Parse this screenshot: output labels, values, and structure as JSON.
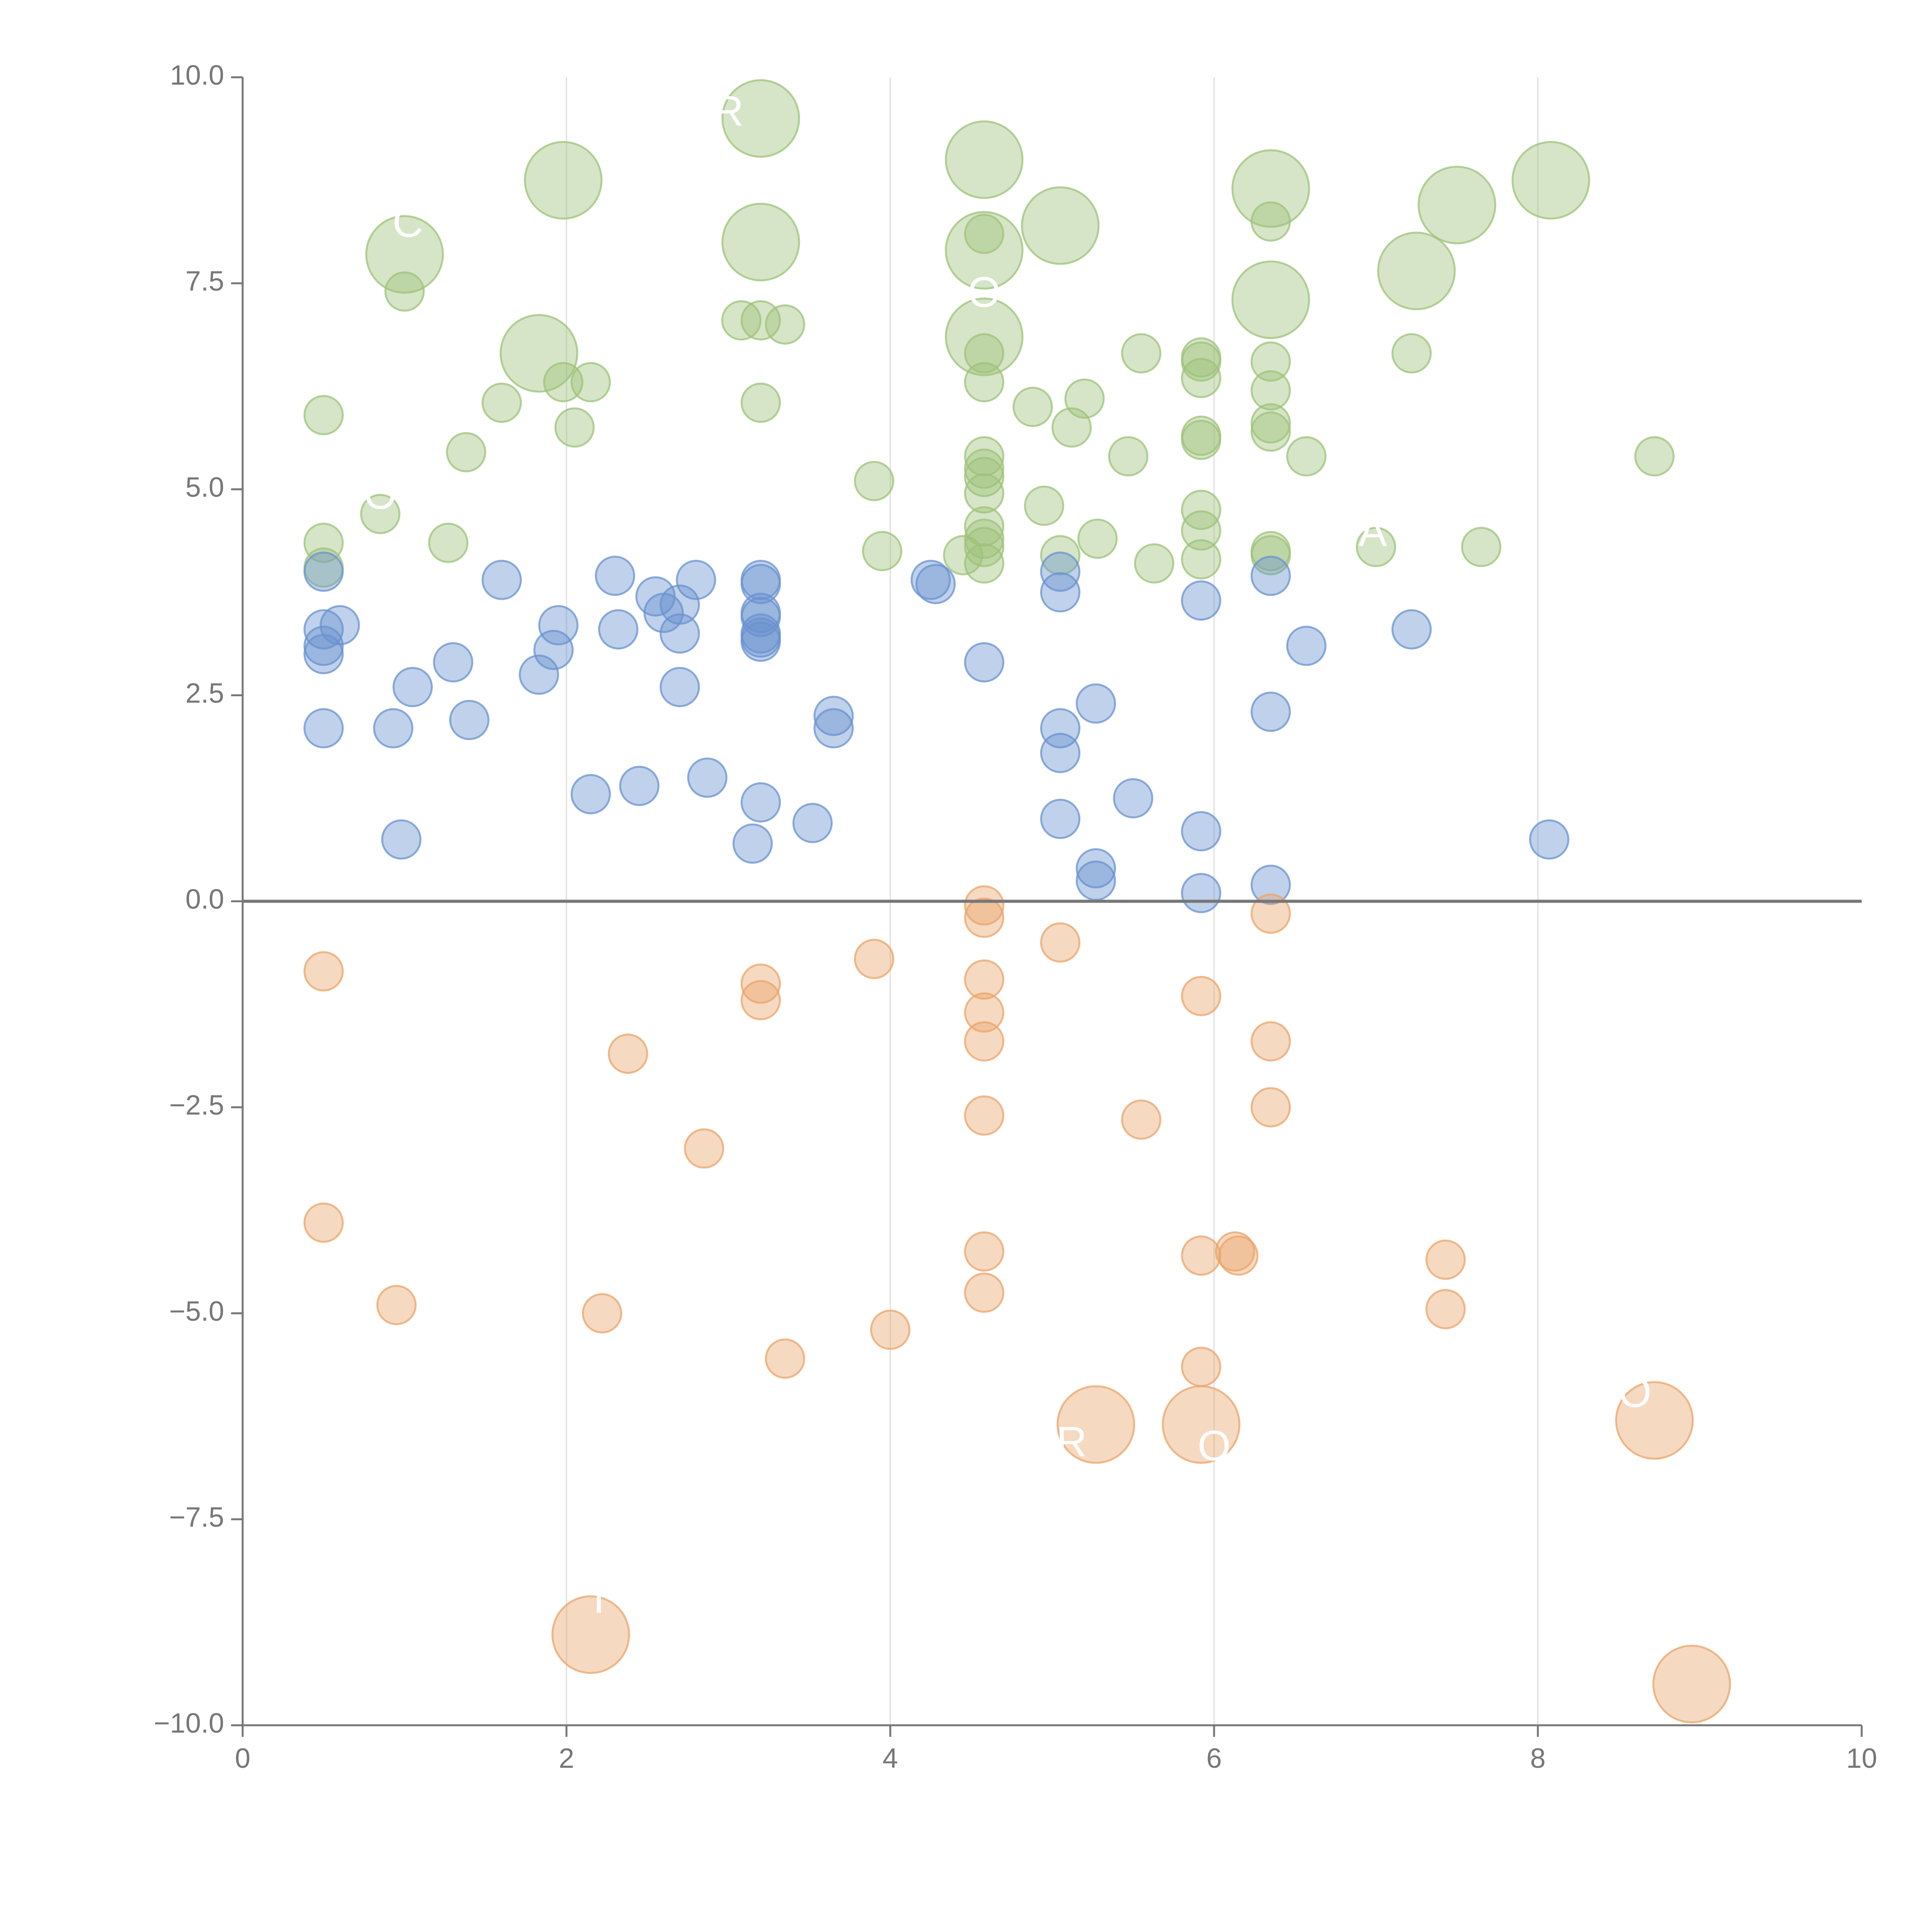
{
  "chart_data": {
    "type": "scatter",
    "title": "",
    "xlabel": "",
    "ylabel": "",
    "xlim": [
      0,
      10
    ],
    "ylim": [
      -10,
      10
    ],
    "x_ticks": [
      "0",
      "2",
      "4",
      "6",
      "8",
      "10"
    ],
    "x_tick_values": [
      0,
      2,
      4,
      6,
      8,
      10
    ],
    "y_ticks": [
      "10.0",
      "7.5",
      "5.0",
      "2.5",
      "0.0",
      "−2.5",
      "−5.0",
      "−7.5",
      "−10.0"
    ],
    "y_tick_values": [
      10,
      7.5,
      5,
      2.5,
      0,
      -2.5,
      -5,
      -7.5,
      -10
    ],
    "grid": "vertical",
    "reference_line_y": 0,
    "series": [
      {
        "color": "#9dc27a",
        "points": [
          [
            3.2,
            9.5,
            1.6
          ],
          [
            1.98,
            8.75,
            1.6
          ],
          [
            4.58,
            9.0,
            1.6
          ],
          [
            6.35,
            8.65,
            1.6
          ],
          [
            8.08,
            8.75,
            1.6
          ],
          [
            7.5,
            8.45,
            1.6
          ],
          [
            1.0,
            7.85,
            1.6
          ],
          [
            3.2,
            8.0,
            1.6
          ],
          [
            5.05,
            8.2,
            1.6
          ],
          [
            4.58,
            7.9,
            1.6
          ],
          [
            7.25,
            7.65,
            1.6
          ],
          [
            6.35,
            7.3,
            1.6
          ],
          [
            1.83,
            6.65,
            1.6
          ],
          [
            4.58,
            6.85,
            1.6
          ],
          [
            1.0,
            7.4,
            0.8
          ],
          [
            3.08,
            7.05,
            0.8
          ],
          [
            3.2,
            7.05,
            0.8
          ],
          [
            3.35,
            7.0,
            0.8
          ],
          [
            4.58,
            8.1,
            0.8
          ],
          [
            6.35,
            8.25,
            0.8
          ],
          [
            0.5,
            5.9,
            0.8
          ],
          [
            1.6,
            6.05,
            0.8
          ],
          [
            1.98,
            6.3,
            0.8
          ],
          [
            2.15,
            6.3,
            0.8
          ],
          [
            2.05,
            5.75,
            0.8
          ],
          [
            3.2,
            6.05,
            0.8
          ],
          [
            1.38,
            5.45,
            0.8
          ],
          [
            0.85,
            4.7,
            0.8
          ],
          [
            0.5,
            4.35,
            0.8
          ],
          [
            0.5,
            4.05,
            0.8
          ],
          [
            1.27,
            4.35,
            0.8
          ],
          [
            3.9,
            5.1,
            0.8
          ],
          [
            3.95,
            4.25,
            0.8
          ],
          [
            4.45,
            4.2,
            0.8
          ],
          [
            4.58,
            6.65,
            0.8
          ],
          [
            4.58,
            6.3,
            0.8
          ],
          [
            4.58,
            5.4,
            0.8
          ],
          [
            4.58,
            5.25,
            0.8
          ],
          [
            4.58,
            5.15,
            0.8
          ],
          [
            4.58,
            4.95,
            0.8
          ],
          [
            4.58,
            4.55,
            0.8
          ],
          [
            4.58,
            4.4,
            0.8
          ],
          [
            4.58,
            4.3,
            0.8
          ],
          [
            4.58,
            4.1,
            0.8
          ],
          [
            4.88,
            6.0,
            0.8
          ],
          [
            4.95,
            4.8,
            0.8
          ],
          [
            5.05,
            4.2,
            0.8
          ],
          [
            5.12,
            5.75,
            0.8
          ],
          [
            5.2,
            6.1,
            0.8
          ],
          [
            5.28,
            4.4,
            0.8
          ],
          [
            5.47,
            5.4,
            0.8
          ],
          [
            5.55,
            6.65,
            0.8
          ],
          [
            5.63,
            4.1,
            0.8
          ],
          [
            5.92,
            6.6,
            0.8
          ],
          [
            5.92,
            6.55,
            0.8
          ],
          [
            5.92,
            6.35,
            0.8
          ],
          [
            5.92,
            5.65,
            0.8
          ],
          [
            5.92,
            5.6,
            0.8
          ],
          [
            5.92,
            4.75,
            0.8
          ],
          [
            5.92,
            4.5,
            0.8
          ],
          [
            5.92,
            4.15,
            0.8
          ],
          [
            6.35,
            6.55,
            0.8
          ],
          [
            6.35,
            6.2,
            0.8
          ],
          [
            6.35,
            5.8,
            0.8
          ],
          [
            6.35,
            5.7,
            0.8
          ],
          [
            6.35,
            4.25,
            0.8
          ],
          [
            6.35,
            4.2,
            0.8
          ],
          [
            6.57,
            5.4,
            0.8
          ],
          [
            7.0,
            4.3,
            0.8
          ],
          [
            7.22,
            6.65,
            0.8
          ],
          [
            7.65,
            4.3,
            0.8
          ],
          [
            8.72,
            5.4,
            0.8
          ]
        ]
      },
      {
        "color": "#6a91cf",
        "points": [
          [
            0.5,
            4.0,
            0.8
          ],
          [
            0.5,
            3.3,
            0.8
          ],
          [
            0.5,
            3.1,
            0.8
          ],
          [
            0.5,
            3.0,
            0.8
          ],
          [
            0.6,
            3.35,
            0.8
          ],
          [
            0.5,
            2.1,
            0.8
          ],
          [
            0.93,
            2.1,
            0.8
          ],
          [
            0.98,
            0.75,
            0.8
          ],
          [
            1.05,
            2.6,
            0.8
          ],
          [
            1.3,
            2.9,
            0.8
          ],
          [
            1.4,
            2.2,
            0.8
          ],
          [
            1.6,
            3.9,
            0.8
          ],
          [
            1.83,
            2.75,
            0.8
          ],
          [
            1.92,
            3.05,
            0.8
          ],
          [
            1.95,
            3.35,
            0.8
          ],
          [
            2.15,
            1.3,
            0.8
          ],
          [
            2.3,
            3.95,
            0.8
          ],
          [
            2.32,
            3.3,
            0.8
          ],
          [
            2.45,
            1.4,
            0.8
          ],
          [
            2.55,
            3.7,
            0.8
          ],
          [
            2.6,
            3.5,
            0.8
          ],
          [
            2.7,
            3.6,
            0.8
          ],
          [
            2.7,
            3.25,
            0.8
          ],
          [
            2.7,
            2.6,
            0.8
          ],
          [
            2.8,
            3.9,
            0.8
          ],
          [
            2.87,
            1.5,
            0.8
          ],
          [
            3.15,
            0.7,
            0.8
          ],
          [
            3.2,
            3.9,
            0.8
          ],
          [
            3.2,
            3.85,
            0.8
          ],
          [
            3.2,
            3.5,
            0.8
          ],
          [
            3.2,
            3.45,
            0.8
          ],
          [
            3.2,
            3.25,
            0.8
          ],
          [
            3.2,
            3.2,
            0.8
          ],
          [
            3.2,
            3.15,
            0.8
          ],
          [
            3.2,
            1.2,
            0.8
          ],
          [
            3.52,
            0.95,
            0.8
          ],
          [
            3.65,
            2.25,
            0.8
          ],
          [
            3.65,
            2.1,
            0.8
          ],
          [
            4.25,
            3.9,
            0.8
          ],
          [
            4.28,
            3.85,
            0.8
          ],
          [
            4.58,
            2.9,
            0.8
          ],
          [
            5.05,
            4.0,
            0.8
          ],
          [
            5.05,
            3.75,
            0.8
          ],
          [
            5.05,
            2.1,
            0.8
          ],
          [
            5.05,
            1.8,
            0.8
          ],
          [
            5.05,
            1.0,
            0.8
          ],
          [
            5.27,
            2.4,
            0.8
          ],
          [
            5.27,
            0.4,
            0.8
          ],
          [
            5.27,
            0.25,
            0.8
          ],
          [
            5.5,
            1.25,
            0.8
          ],
          [
            5.92,
            3.65,
            0.8
          ],
          [
            5.92,
            0.85,
            0.8
          ],
          [
            5.92,
            0.1,
            0.8
          ],
          [
            6.35,
            3.95,
            0.8
          ],
          [
            6.35,
            2.3,
            0.8
          ],
          [
            6.35,
            0.2,
            0.8
          ],
          [
            6.57,
            3.1,
            0.8
          ],
          [
            7.22,
            3.3,
            0.8
          ],
          [
            8.07,
            0.75,
            0.8
          ]
        ]
      },
      {
        "color": "#e9a46b",
        "points": [
          [
            0.5,
            -0.85,
            0.8
          ],
          [
            0.5,
            -3.9,
            0.8
          ],
          [
            0.95,
            -4.9,
            0.8
          ],
          [
            2.22,
            -5.0,
            0.8
          ],
          [
            2.38,
            -1.85,
            0.8
          ],
          [
            2.85,
            -3.0,
            0.8
          ],
          [
            3.2,
            -1.0,
            0.8
          ],
          [
            3.2,
            -1.2,
            0.8
          ],
          [
            3.35,
            -5.55,
            0.8
          ],
          [
            3.9,
            -0.7,
            0.8
          ],
          [
            4.0,
            -5.2,
            0.8
          ],
          [
            4.58,
            -0.05,
            0.8
          ],
          [
            4.58,
            -0.2,
            0.8
          ],
          [
            4.58,
            -0.95,
            0.8
          ],
          [
            4.58,
            -1.35,
            0.8
          ],
          [
            4.58,
            -1.7,
            0.8
          ],
          [
            4.58,
            -2.6,
            0.8
          ],
          [
            4.58,
            -4.25,
            0.8
          ],
          [
            4.58,
            -4.75,
            0.8
          ],
          [
            5.05,
            -0.5,
            0.8
          ],
          [
            5.55,
            -2.65,
            0.8
          ],
          [
            5.92,
            -1.15,
            0.8
          ],
          [
            5.92,
            -4.3,
            0.8
          ],
          [
            5.92,
            -5.65,
            0.8
          ],
          [
            6.13,
            -4.25,
            0.8
          ],
          [
            6.15,
            -4.3,
            0.8
          ],
          [
            6.35,
            -0.15,
            0.8
          ],
          [
            6.35,
            -1.7,
            0.8
          ],
          [
            6.35,
            -2.5,
            0.8
          ],
          [
            7.43,
            -4.35,
            0.8
          ],
          [
            7.43,
            -4.95,
            0.8
          ],
          [
            5.27,
            -6.35,
            1.6
          ],
          [
            5.92,
            -6.35,
            1.6
          ],
          [
            8.72,
            -6.3,
            1.6
          ],
          [
            2.15,
            -8.9,
            1.6
          ],
          [
            8.95,
            -9.5,
            1.6
          ]
        ]
      }
    ],
    "bubble_labels": [
      {
        "text": "R",
        "x": 3.0,
        "y": 9.55
      },
      {
        "text": "C",
        "x": 1.02,
        "y": 8.2
      },
      {
        "text": "O",
        "x": 4.58,
        "y": 7.35
      },
      {
        "text": "O",
        "x": 0.85,
        "y": 4.9
      },
      {
        "text": "A",
        "x": 6.98,
        "y": 4.45
      },
      {
        "text": "R",
        "x": 5.12,
        "y": -6.6
      },
      {
        "text": "O",
        "x": 6.0,
        "y": -6.65
      },
      {
        "text": "O",
        "x": 8.6,
        "y": -6.0
      },
      {
        "text": "I",
        "x": 2.2,
        "y": -8.5
      }
    ]
  }
}
